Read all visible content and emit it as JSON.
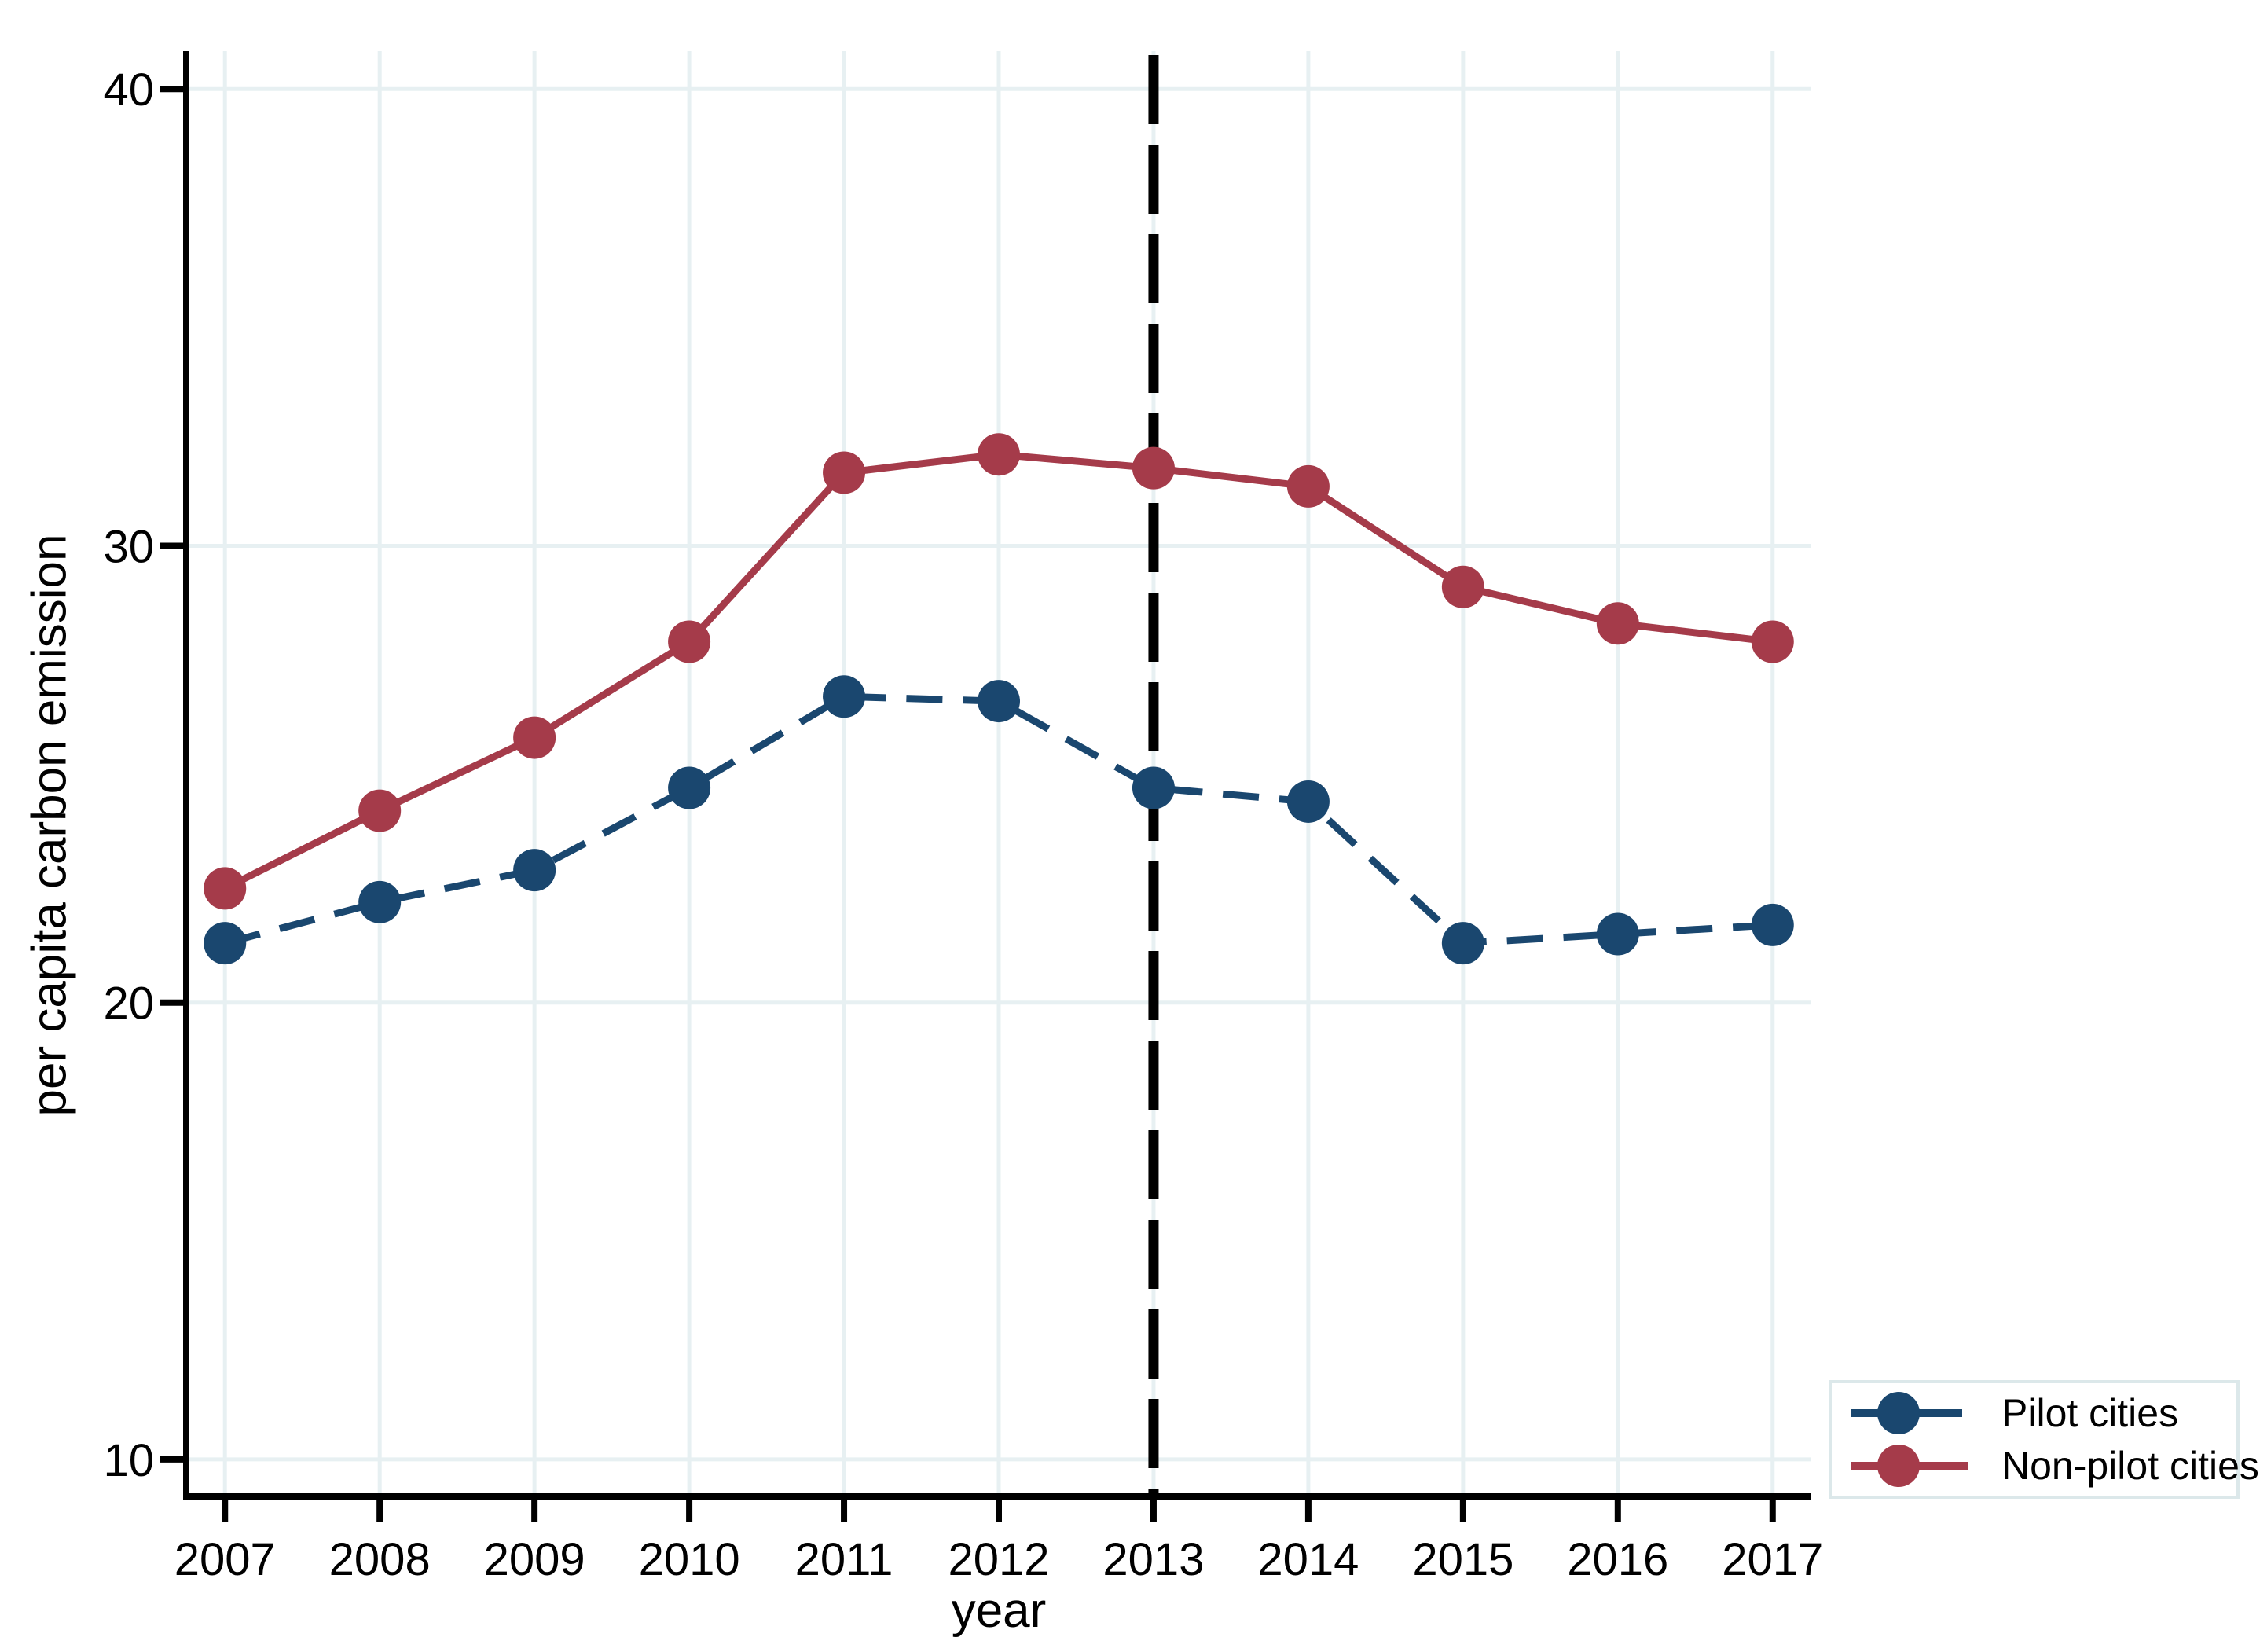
{
  "chart_data": {
    "type": "line",
    "title": "",
    "xlabel": "year",
    "ylabel": "per capita carbon emission",
    "x": [
      2007,
      2008,
      2009,
      2010,
      2011,
      2012,
      2013,
      2014,
      2015,
      2016,
      2017
    ],
    "xtick_labels": [
      "2007",
      "2008",
      "2009",
      "2010",
      "2011",
      "2012",
      "2013",
      "2014",
      "2015",
      "2016",
      "2017"
    ],
    "yticks": [
      10,
      20,
      30,
      40
    ],
    "ytick_labels": [
      "10",
      "20",
      "30",
      "40"
    ],
    "xlim": [
      2006.75,
      2017.25
    ],
    "ylim": [
      9.19,
      40.83
    ],
    "grid": true,
    "legend_position": "bottom-right",
    "series": [
      {
        "name": "Pilot cities",
        "color": "#1a476f",
        "line_style": "dashed",
        "marker": "circle",
        "values": [
          21.3,
          22.2,
          22.9,
          24.7,
          26.7,
          26.6,
          24.7,
          24.4,
          21.3,
          21.5,
          21.7
        ]
      },
      {
        "name": "Non-pilot cities",
        "color": "#a53b4a",
        "line_style": "solid",
        "marker": "circle",
        "values": [
          22.5,
          24.2,
          25.8,
          27.9,
          31.6,
          32.0,
          31.7,
          31.3,
          29.1,
          28.3,
          27.9
        ]
      }
    ],
    "reference_line": {
      "axis": "x",
      "value": 2013,
      "style": "dashed",
      "color": "#000000"
    },
    "colors": {
      "background": "#ffffff",
      "axis": "#000000",
      "grid": "#e7f0f2",
      "legend_border": "#dce8ea",
      "tick_label": "#000000"
    },
    "legend": {
      "items": [
        "Pilot cities",
        "Non-pilot cities"
      ]
    }
  }
}
